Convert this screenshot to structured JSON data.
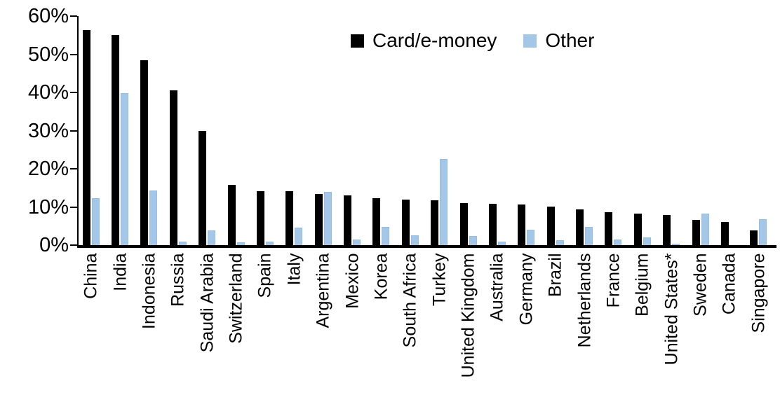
{
  "chart_data": {
    "type": "bar",
    "title": "",
    "xlabel": "",
    "ylabel": "",
    "ylim": [
      0,
      60
    ],
    "yticks": [
      "0%",
      "10%",
      "20%",
      "30%",
      "40%",
      "50%",
      "60%"
    ],
    "grid": false,
    "legend_position": "top",
    "categories": [
      "China",
      "India",
      "Indonesia",
      "Russia",
      "Saudi Arabia",
      "Switzerland",
      "Spain",
      "Italy",
      "Argentina",
      "Mexico",
      "Korea",
      "South Africa",
      "Turkey",
      "United Kingdom",
      "Australia",
      "Germany",
      "Brazil",
      "Netherlands",
      "France",
      "Belgium",
      "United States*",
      "Sweden",
      "Canada",
      "Singapore"
    ],
    "series": [
      {
        "name": "Card/e-money",
        "color": "#000000",
        "values": [
          56.4,
          55.1,
          48.4,
          40.6,
          29.9,
          15.7,
          14.2,
          14.1,
          13.4,
          13.0,
          12.3,
          11.9,
          11.7,
          11.1,
          10.9,
          10.7,
          10.1,
          9.3,
          8.7,
          8.2,
          7.9,
          6.6,
          6.1,
          3.9
        ]
      },
      {
        "name": "Other",
        "color": "#A4C7E8",
        "values": [
          12.3,
          39.8,
          14.4,
          1.0,
          3.9,
          0.8,
          1.0,
          4.6,
          13.9,
          1.4,
          4.8,
          2.5,
          22.6,
          2.3,
          1.0,
          4.0,
          1.2,
          4.8,
          1.5,
          2.1,
          0.4,
          8.2,
          0.0,
          6.7
        ]
      }
    ]
  },
  "legend": {
    "card_label": "Card/e-money",
    "other_label": "Other"
  }
}
